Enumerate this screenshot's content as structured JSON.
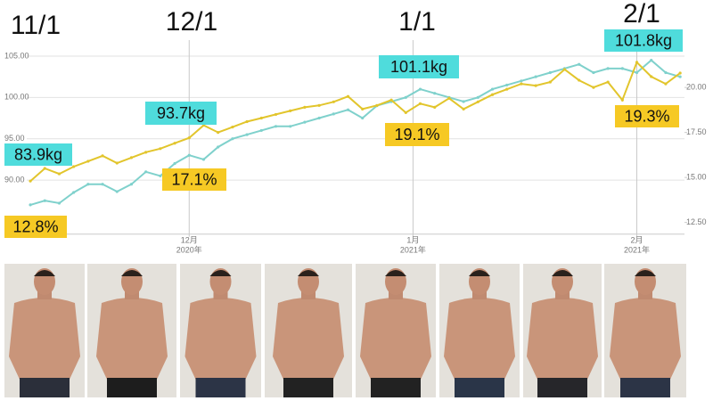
{
  "chart_data": {
    "type": "line",
    "annotations": [
      {
        "text": "11/1",
        "kind": "date"
      },
      {
        "text": "12/1",
        "kind": "date"
      },
      {
        "text": "1/1",
        "kind": "date"
      },
      {
        "text": "2/1",
        "kind": "date"
      },
      {
        "text": "83.9kg",
        "kind": "weight"
      },
      {
        "text": "12.8%",
        "kind": "fat"
      },
      {
        "text": "93.7kg",
        "kind": "weight"
      },
      {
        "text": "17.1%",
        "kind": "fat"
      },
      {
        "text": "101.1kg",
        "kind": "weight"
      },
      {
        "text": "19.1%",
        "kind": "fat"
      },
      {
        "text": "101.8kg",
        "kind": "weight"
      },
      {
        "text": "19.3%",
        "kind": "fat"
      }
    ],
    "x": [
      8,
      10,
      12,
      14,
      16,
      18,
      20,
      22,
      24,
      26,
      28,
      30,
      32,
      34,
      36,
      38,
      40,
      42,
      44,
      46,
      48,
      50,
      52,
      54,
      56,
      58,
      60,
      62,
      64,
      66,
      68,
      70,
      72,
      74,
      76,
      78,
      80,
      82,
      84,
      86,
      88,
      90,
      92,
      94,
      96,
      98
    ],
    "xlim": [
      7.5,
      98.6
    ],
    "xticks": [
      {
        "value": 30,
        "label": "12月",
        "year": "2020年"
      },
      {
        "value": 61,
        "label": "1月",
        "year": "2021年"
      },
      {
        "value": 92,
        "label": "2月",
        "year": "2021年"
      }
    ],
    "ylim": [
      84,
      106
    ],
    "yticks": [
      {
        "value": 90,
        "label": "90.00"
      },
      {
        "value": 95,
        "label": "95.00"
      },
      {
        "value": 100,
        "label": "100.00"
      },
      {
        "value": 105,
        "label": "105.00"
      }
    ],
    "y2lim": [
      12.1,
      22.2
    ],
    "y2ticks": [
      {
        "value": 12.5,
        "label": "12.50"
      },
      {
        "value": 15,
        "label": "15.00"
      },
      {
        "value": 17.5,
        "label": "17.50"
      },
      {
        "value": 20,
        "label": "20.00"
      }
    ],
    "grid": true,
    "series": [
      {
        "color": "#7fd1cc",
        "label_color": "#4fdcdc",
        "values": [
          87.0,
          87.5,
          87.2,
          88.5,
          89.5,
          89.5,
          88.6,
          89.5,
          91.0,
          90.5,
          92.0,
          93.0,
          92.5,
          94.0,
          95.0,
          95.5,
          96.0,
          96.5,
          96.5,
          97.0,
          97.5,
          98.0,
          98.5,
          97.5,
          99.0,
          99.5,
          100.0,
          101.0,
          100.5,
          100.0,
          99.5,
          100.0,
          101.0,
          101.5,
          102.0,
          102.5,
          103.0,
          103.5,
          104.0,
          103.0,
          103.5,
          103.5,
          103.0,
          104.5,
          103.0,
          102.5
        ]
      },
      {
        "color": "#e2c52c",
        "label_color": "#f6c924",
        "axis": "y2",
        "values": [
          14.8,
          15.5,
          15.2,
          15.6,
          15.9,
          16.2,
          15.8,
          16.1,
          16.4,
          16.6,
          16.9,
          17.2,
          17.9,
          17.5,
          17.8,
          18.1,
          18.3,
          18.5,
          18.7,
          18.9,
          19.0,
          19.2,
          19.5,
          18.8,
          19.0,
          19.3,
          18.6,
          19.1,
          18.9,
          19.4,
          18.8,
          19.2,
          19.6,
          19.9,
          20.2,
          20.1,
          20.3,
          21.0,
          20.4,
          20.0,
          20.3,
          19.3,
          21.4,
          20.6,
          20.2,
          20.8
        ]
      }
    ]
  }
}
